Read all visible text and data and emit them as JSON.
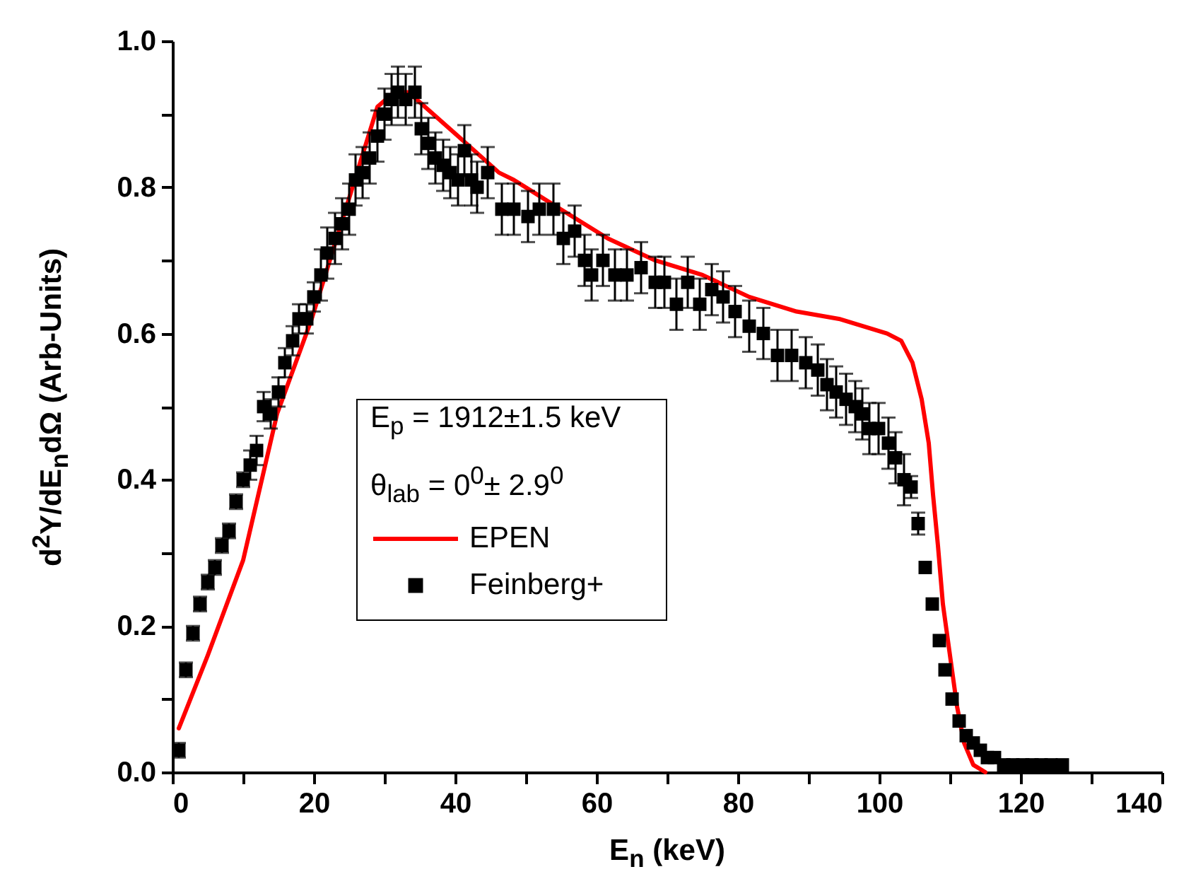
{
  "chart_data": {
    "type": "scatter",
    "xlabel": "E$_{n}$ (keV)",
    "ylabel": "d$^{2}$Y/dE$_{n}$dΩ (Arb-Units)",
    "annotations": [
      "E$_{p}$ = 1912±1.5 keV",
      "θ$_{lab}$ = 0$^{0}$± 2.9$^{0}$"
    ],
    "xlim": [
      0,
      140
    ],
    "xticks": [
      0,
      {
        "value": 10,
        "label": null
      },
      20,
      {
        "value": 30,
        "label": null
      },
      40,
      {
        "value": 50,
        "label": null
      },
      60,
      {
        "value": 70,
        "label": null
      },
      80,
      {
        "value": 90,
        "label": null
      },
      100,
      {
        "value": 110,
        "label": null
      },
      120,
      {
        "value": 130,
        "label": null
      },
      140
    ],
    "ylim": [
      0,
      1
    ],
    "yticks": [
      {
        "value": 0,
        "label": "0.0"
      },
      {
        "value": 0.1,
        "label": null
      },
      {
        "value": 0.2,
        "label": "0.2"
      },
      {
        "value": 0.3,
        "label": null
      },
      {
        "value": 0.4,
        "label": "0.4"
      },
      {
        "value": 0.5,
        "label": null
      },
      {
        "value": 0.6,
        "label": "0.6"
      },
      {
        "value": 0.7,
        "label": null
      },
      {
        "value": 0.8,
        "label": "0.8"
      },
      {
        "value": 0.9,
        "label": null
      },
      {
        "value": 1,
        "label": "1.0"
      }
    ],
    "legend": "left",
    "series": [
      {
        "name": "EPEN",
        "type": "line",
        "color": "#ff0000",
        "marker": "none",
        "line_style": "solid",
        "x": [
          0.9,
          5,
          10,
          14.8,
          19.7,
          29,
          31.4,
          33.4,
          40.4,
          46.2,
          48.3,
          54.9,
          61.6,
          68.3,
          75,
          81.6,
          88.3,
          94.3,
          101.1,
          103.1,
          104.7,
          106,
          107,
          107.6,
          108.3,
          109,
          110,
          111,
          112,
          113.3,
          115
        ],
        "values": [
          0.06,
          0.16,
          0.29,
          0.49,
          0.62,
          0.91,
          0.93,
          0.93,
          0.87,
          0.82,
          0.81,
          0.77,
          0.73,
          0.7,
          0.68,
          0.65,
          0.63,
          0.62,
          0.6,
          0.59,
          0.56,
          0.51,
          0.45,
          0.38,
          0.31,
          0.23,
          0.16,
          0.09,
          0.04,
          0.01,
          0.0
        ]
      },
      {
        "name": "Feinberg+",
        "type": "scatter",
        "color": "#000000",
        "marker": "square",
        "x": [
          0.9,
          1.9,
          2.9,
          3.9,
          5.0,
          6.0,
          7.0,
          8.0,
          9.0,
          10.0,
          11.0,
          11.9,
          12.9,
          13.9,
          15.0,
          15.9,
          17.0,
          17.9,
          19.0,
          20.0,
          21.0,
          21.9,
          23.0,
          24.0,
          25.0,
          25.9,
          26.9,
          27.9,
          29.0,
          30.0,
          31.0,
          31.9,
          33.0,
          34.3,
          35.2,
          36.2,
          37.2,
          38.3,
          39.3,
          40.4,
          41.3,
          42.3,
          43.1,
          44.6,
          46.6,
          48.3,
          50.3,
          51.9,
          53.9,
          55.3,
          56.9,
          58.3,
          59.3,
          60.9,
          62.6,
          64.3,
          66.3,
          68.3,
          69.6,
          71.3,
          72.9,
          74.6,
          76.3,
          77.9,
          79.6,
          81.6,
          83.6,
          85.6,
          87.6,
          89.6,
          91.3,
          92.6,
          93.9,
          95.3,
          96.6,
          97.6,
          98.6,
          99.9,
          101.3,
          102.3,
          103.5,
          104.5,
          105.5,
          106.5,
          107.5,
          108.5,
          109.3,
          110.3,
          111.3,
          112.3,
          113.3,
          114.3,
          115.3,
          116.3,
          117.6,
          118.9,
          120.3,
          121.6,
          122.9,
          124.3,
          125.9
        ],
        "values": [
          0.03,
          0.14,
          0.19,
          0.23,
          0.26,
          0.28,
          0.31,
          0.33,
          0.37,
          0.4,
          0.42,
          0.44,
          0.5,
          0.49,
          0.52,
          0.56,
          0.59,
          0.62,
          0.62,
          0.65,
          0.68,
          0.71,
          0.73,
          0.75,
          0.77,
          0.81,
          0.82,
          0.84,
          0.87,
          0.9,
          0.92,
          0.93,
          0.92,
          0.93,
          0.88,
          0.86,
          0.84,
          0.83,
          0.82,
          0.81,
          0.85,
          0.81,
          0.8,
          0.82,
          0.77,
          0.77,
          0.76,
          0.77,
          0.77,
          0.73,
          0.74,
          0.7,
          0.68,
          0.7,
          0.68,
          0.68,
          0.69,
          0.67,
          0.67,
          0.64,
          0.67,
          0.64,
          0.66,
          0.65,
          0.63,
          0.61,
          0.6,
          0.57,
          0.57,
          0.56,
          0.55,
          0.53,
          0.52,
          0.51,
          0.5,
          0.49,
          0.47,
          0.47,
          0.45,
          0.43,
          0.4,
          0.39,
          0.34,
          0.28,
          0.23,
          0.18,
          0.14,
          0.1,
          0.07,
          0.05,
          0.04,
          0.03,
          0.02,
          0.02,
          0.01,
          0.01,
          0.01,
          0.01,
          0.01,
          0.01,
          0.01
        ],
        "errors": [
          0.01,
          0.01,
          0.01,
          0.01,
          0.01,
          0.01,
          0.01,
          0.01,
          0.01,
          0.01,
          0.02,
          0.02,
          0.02,
          0.02,
          0.02,
          0.02,
          0.02,
          0.02,
          0.02,
          0.02,
          0.035,
          0.035,
          0.035,
          0.035,
          0.035,
          0.035,
          0.035,
          0.035,
          0.035,
          0.035,
          0.035,
          0.035,
          0.035,
          0.035,
          0.035,
          0.035,
          0.035,
          0.035,
          0.035,
          0.035,
          0.035,
          0.035,
          0.035,
          0.035,
          0.035,
          0.035,
          0.035,
          0.035,
          0.035,
          0.035,
          0.035,
          0.035,
          0.035,
          0.035,
          0.035,
          0.035,
          0.035,
          0.035,
          0.035,
          0.035,
          0.035,
          0.035,
          0.035,
          0.035,
          0.035,
          0.035,
          0.035,
          0.035,
          0.035,
          0.035,
          0.035,
          0.035,
          0.035,
          0.035,
          0.035,
          0.035,
          0.035,
          0.035,
          0.035,
          0.035,
          0.035,
          0.015,
          0.015,
          null,
          null,
          null,
          null,
          null,
          null,
          null,
          null,
          null,
          null,
          null,
          null,
          null,
          null,
          null,
          null,
          null,
          null
        ]
      }
    ]
  }
}
